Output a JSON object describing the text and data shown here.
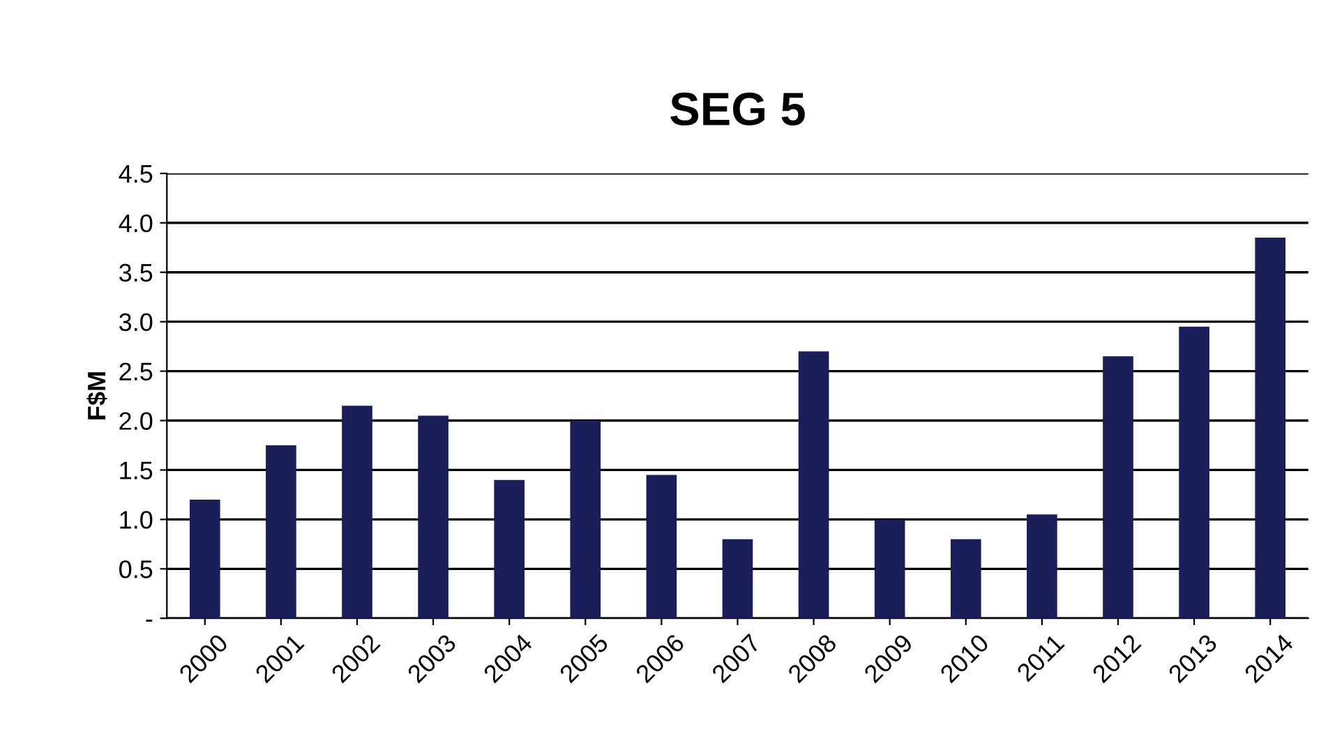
{
  "chart_data": {
    "type": "bar",
    "title": "SEG 5",
    "ylabel": "F$M",
    "categories": [
      "2000",
      "2001",
      "2002",
      "2003",
      "2004",
      "2005",
      "2006",
      "2007",
      "2008",
      "2009",
      "2010",
      "2011",
      "2012",
      "2013",
      "2014"
    ],
    "values": [
      1.2,
      1.75,
      2.15,
      2.05,
      1.4,
      2.0,
      1.45,
      0.8,
      2.7,
      1.0,
      0.8,
      1.05,
      2.65,
      2.95,
      3.85
    ],
    "color": "#1a1f5c",
    "ylim": [
      0,
      4.5
    ],
    "yticks": [
      {
        "value": 0,
        "label": "-"
      },
      0.5,
      {
        "value": 1,
        "label": "1.0"
      },
      1.5,
      {
        "value": 2,
        "label": "2.0"
      },
      2.5,
      {
        "value": 3,
        "label": "3.0"
      },
      3.5,
      {
        "value": 4,
        "label": "4.0"
      },
      4.5
    ],
    "grid": "y",
    "legend": false
  }
}
